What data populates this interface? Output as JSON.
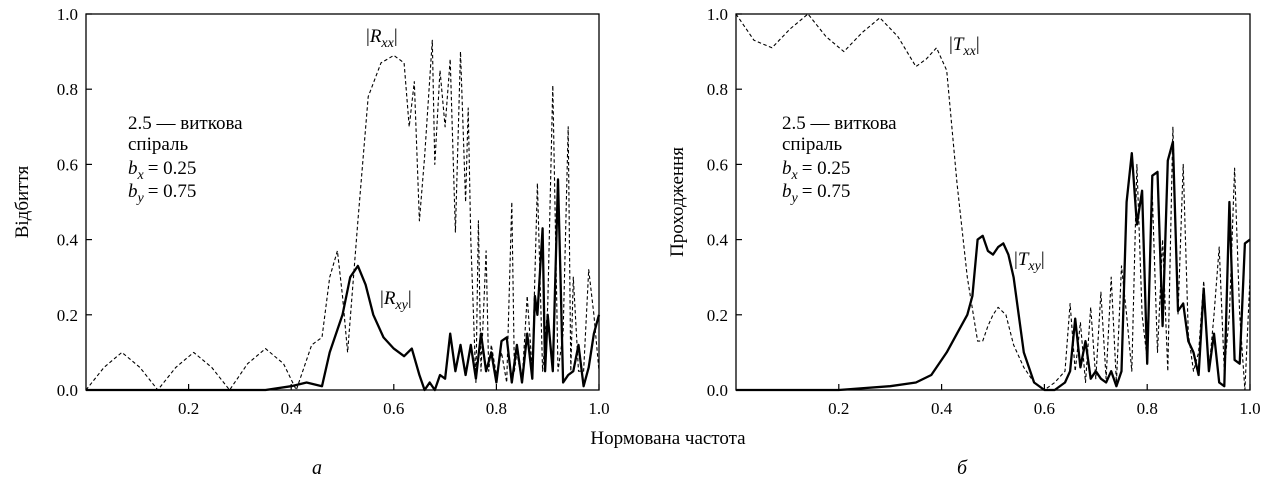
{
  "figure": {
    "shared_xlabel": "Нормована частота",
    "panels": [
      {
        "letter": "а",
        "ylabel": "Відбиття",
        "annotation": {
          "line1": "2.5 — виткова",
          "line2": "спіраль",
          "bx": "= 0.25",
          "by": "= 0.75"
        },
        "dashed_label": "xx",
        "solid_label": "xy",
        "symbol": "R"
      },
      {
        "letter": "б",
        "ylabel": "Проходження",
        "annotation": {
          "line1": "2.5 — виткова",
          "line2": "спіраль",
          "bx": "= 0.25",
          "by": "= 0.75"
        },
        "dashed_label": "xx",
        "solid_label": "xy",
        "symbol": "T"
      }
    ]
  },
  "chart_data": [
    {
      "type": "line",
      "xlabel": "Нормована частота",
      "ylabel": "Відбиття",
      "xlim": [
        0,
        1.0
      ],
      "ylim": [
        0,
        1.0
      ],
      "x_ticks": [
        "0.2",
        "0.4",
        "0.6",
        "0.8",
        "1.0"
      ],
      "y_ticks": [
        "0.0",
        "0.2",
        "0.4",
        "0.6",
        "0.8",
        "1.0"
      ],
      "grid": false,
      "series": [
        {
          "name": "|Rxx|",
          "style": "dashed",
          "x": [
            0,
            0.035,
            0.07,
            0.105,
            0.14,
            0.175,
            0.21,
            0.245,
            0.28,
            0.315,
            0.35,
            0.385,
            0.41,
            0.44,
            0.46,
            0.475,
            0.49,
            0.5,
            0.51,
            0.53,
            0.55,
            0.575,
            0.6,
            0.62,
            0.63,
            0.64,
            0.65,
            0.66,
            0.675,
            0.68,
            0.69,
            0.7,
            0.71,
            0.72,
            0.73,
            0.74,
            0.745,
            0.75,
            0.76,
            0.765,
            0.77,
            0.78,
            0.785,
            0.79,
            0.8,
            0.81,
            0.82,
            0.83,
            0.835,
            0.84,
            0.85,
            0.86,
            0.87,
            0.88,
            0.89,
            0.9,
            0.91,
            0.92,
            0.93,
            0.94,
            0.945,
            0.95,
            0.96,
            0.97,
            0.98,
            0.99,
            1.0
          ],
          "y": [
            0.0,
            0.06,
            0.1,
            0.06,
            0.0,
            0.06,
            0.1,
            0.06,
            0.0,
            0.07,
            0.11,
            0.07,
            0.0,
            0.12,
            0.14,
            0.3,
            0.37,
            0.25,
            0.1,
            0.45,
            0.78,
            0.87,
            0.89,
            0.87,
            0.7,
            0.82,
            0.45,
            0.62,
            0.93,
            0.6,
            0.85,
            0.7,
            0.88,
            0.42,
            0.9,
            0.5,
            0.75,
            0.4,
            0.02,
            0.45,
            0.05,
            0.37,
            0.05,
            0.12,
            0.04,
            0.1,
            0.02,
            0.5,
            0.05,
            0.1,
            0.02,
            0.25,
            0.05,
            0.55,
            0.05,
            0.22,
            0.81,
            0.05,
            0.15,
            0.7,
            0.05,
            0.3,
            0.05,
            0.05,
            0.32,
            0.2,
            0.05
          ]
        },
        {
          "name": "|Rxy|",
          "style": "solid",
          "x": [
            0,
            0.35,
            0.4,
            0.43,
            0.46,
            0.475,
            0.49,
            0.5,
            0.515,
            0.53,
            0.545,
            0.56,
            0.58,
            0.6,
            0.62,
            0.635,
            0.65,
            0.66,
            0.67,
            0.68,
            0.69,
            0.7,
            0.71,
            0.72,
            0.73,
            0.74,
            0.75,
            0.76,
            0.77,
            0.78,
            0.79,
            0.8,
            0.81,
            0.82,
            0.83,
            0.84,
            0.85,
            0.86,
            0.87,
            0.875,
            0.88,
            0.89,
            0.895,
            0.9,
            0.91,
            0.92,
            0.925,
            0.93,
            0.94,
            0.95,
            0.96,
            0.97,
            0.98,
            0.99,
            1.0
          ],
          "y": [
            0.0,
            0.0,
            0.01,
            0.02,
            0.01,
            0.1,
            0.16,
            0.2,
            0.3,
            0.33,
            0.28,
            0.2,
            0.14,
            0.11,
            0.09,
            0.11,
            0.04,
            0.0,
            0.02,
            0.0,
            0.04,
            0.03,
            0.15,
            0.05,
            0.12,
            0.04,
            0.12,
            0.03,
            0.15,
            0.05,
            0.1,
            0.02,
            0.13,
            0.14,
            0.02,
            0.12,
            0.02,
            0.15,
            0.03,
            0.25,
            0.2,
            0.43,
            0.05,
            0.2,
            0.05,
            0.56,
            0.3,
            0.02,
            0.04,
            0.05,
            0.12,
            0.01,
            0.06,
            0.15,
            0.2
          ]
        }
      ]
    },
    {
      "type": "line",
      "xlabel": "Нормована частота",
      "ylabel": "Проходження",
      "xlim": [
        0,
        1.0
      ],
      "ylim": [
        0,
        1.0
      ],
      "x_ticks": [
        "0.2",
        "0.4",
        "0.6",
        "0.8",
        "1.0"
      ],
      "y_ticks": [
        "0.0",
        "0.2",
        "0.4",
        "0.6",
        "0.8",
        "1.0"
      ],
      "grid": false,
      "series": [
        {
          "name": "|Txx|",
          "style": "dashed",
          "x": [
            0,
            0.035,
            0.07,
            0.105,
            0.14,
            0.175,
            0.21,
            0.245,
            0.28,
            0.315,
            0.35,
            0.37,
            0.39,
            0.41,
            0.43,
            0.45,
            0.47,
            0.48,
            0.49,
            0.5,
            0.51,
            0.525,
            0.54,
            0.56,
            0.58,
            0.6,
            0.62,
            0.64,
            0.65,
            0.66,
            0.67,
            0.68,
            0.69,
            0.7,
            0.71,
            0.72,
            0.73,
            0.74,
            0.75,
            0.76,
            0.77,
            0.78,
            0.79,
            0.8,
            0.81,
            0.82,
            0.83,
            0.84,
            0.85,
            0.86,
            0.87,
            0.88,
            0.89,
            0.9,
            0.91,
            0.92,
            0.93,
            0.94,
            0.95,
            0.96,
            0.97,
            0.98,
            0.99,
            1.0
          ],
          "y": [
            1.0,
            0.93,
            0.91,
            0.96,
            1.0,
            0.94,
            0.9,
            0.95,
            0.99,
            0.94,
            0.86,
            0.88,
            0.91,
            0.85,
            0.55,
            0.3,
            0.13,
            0.13,
            0.17,
            0.2,
            0.22,
            0.2,
            0.12,
            0.06,
            0.02,
            0.0,
            0.02,
            0.05,
            0.23,
            0.05,
            0.18,
            0.02,
            0.22,
            0.03,
            0.26,
            0.03,
            0.3,
            0.02,
            0.33,
            0.2,
            0.05,
            0.6,
            0.2,
            0.08,
            0.52,
            0.1,
            0.4,
            0.05,
            0.7,
            0.2,
            0.6,
            0.15,
            0.05,
            0.1,
            0.29,
            0.05,
            0.2,
            0.38,
            0.05,
            0.2,
            0.59,
            0.2,
            0.0,
            0.3
          ]
        },
        {
          "name": "|Txy|",
          "style": "solid",
          "x": [
            0,
            0.2,
            0.3,
            0.35,
            0.38,
            0.41,
            0.43,
            0.45,
            0.46,
            0.47,
            0.48,
            0.49,
            0.5,
            0.51,
            0.52,
            0.53,
            0.54,
            0.55,
            0.56,
            0.58,
            0.6,
            0.62,
            0.64,
            0.65,
            0.66,
            0.67,
            0.68,
            0.69,
            0.7,
            0.71,
            0.72,
            0.73,
            0.74,
            0.75,
            0.76,
            0.77,
            0.78,
            0.79,
            0.8,
            0.81,
            0.82,
            0.83,
            0.84,
            0.85,
            0.86,
            0.87,
            0.88,
            0.89,
            0.9,
            0.91,
            0.92,
            0.93,
            0.94,
            0.95,
            0.96,
            0.97,
            0.98,
            0.99,
            1.0
          ],
          "y": [
            0.0,
            0.0,
            0.01,
            0.02,
            0.04,
            0.1,
            0.15,
            0.2,
            0.25,
            0.4,
            0.41,
            0.37,
            0.36,
            0.38,
            0.39,
            0.36,
            0.3,
            0.2,
            0.1,
            0.02,
            0.0,
            0.0,
            0.02,
            0.05,
            0.19,
            0.06,
            0.13,
            0.03,
            0.05,
            0.03,
            0.02,
            0.05,
            0.01,
            0.05,
            0.5,
            0.63,
            0.44,
            0.53,
            0.07,
            0.57,
            0.58,
            0.17,
            0.61,
            0.66,
            0.21,
            0.23,
            0.13,
            0.1,
            0.04,
            0.27,
            0.05,
            0.15,
            0.02,
            0.01,
            0.5,
            0.08,
            0.07,
            0.39,
            0.4
          ]
        }
      ]
    }
  ]
}
